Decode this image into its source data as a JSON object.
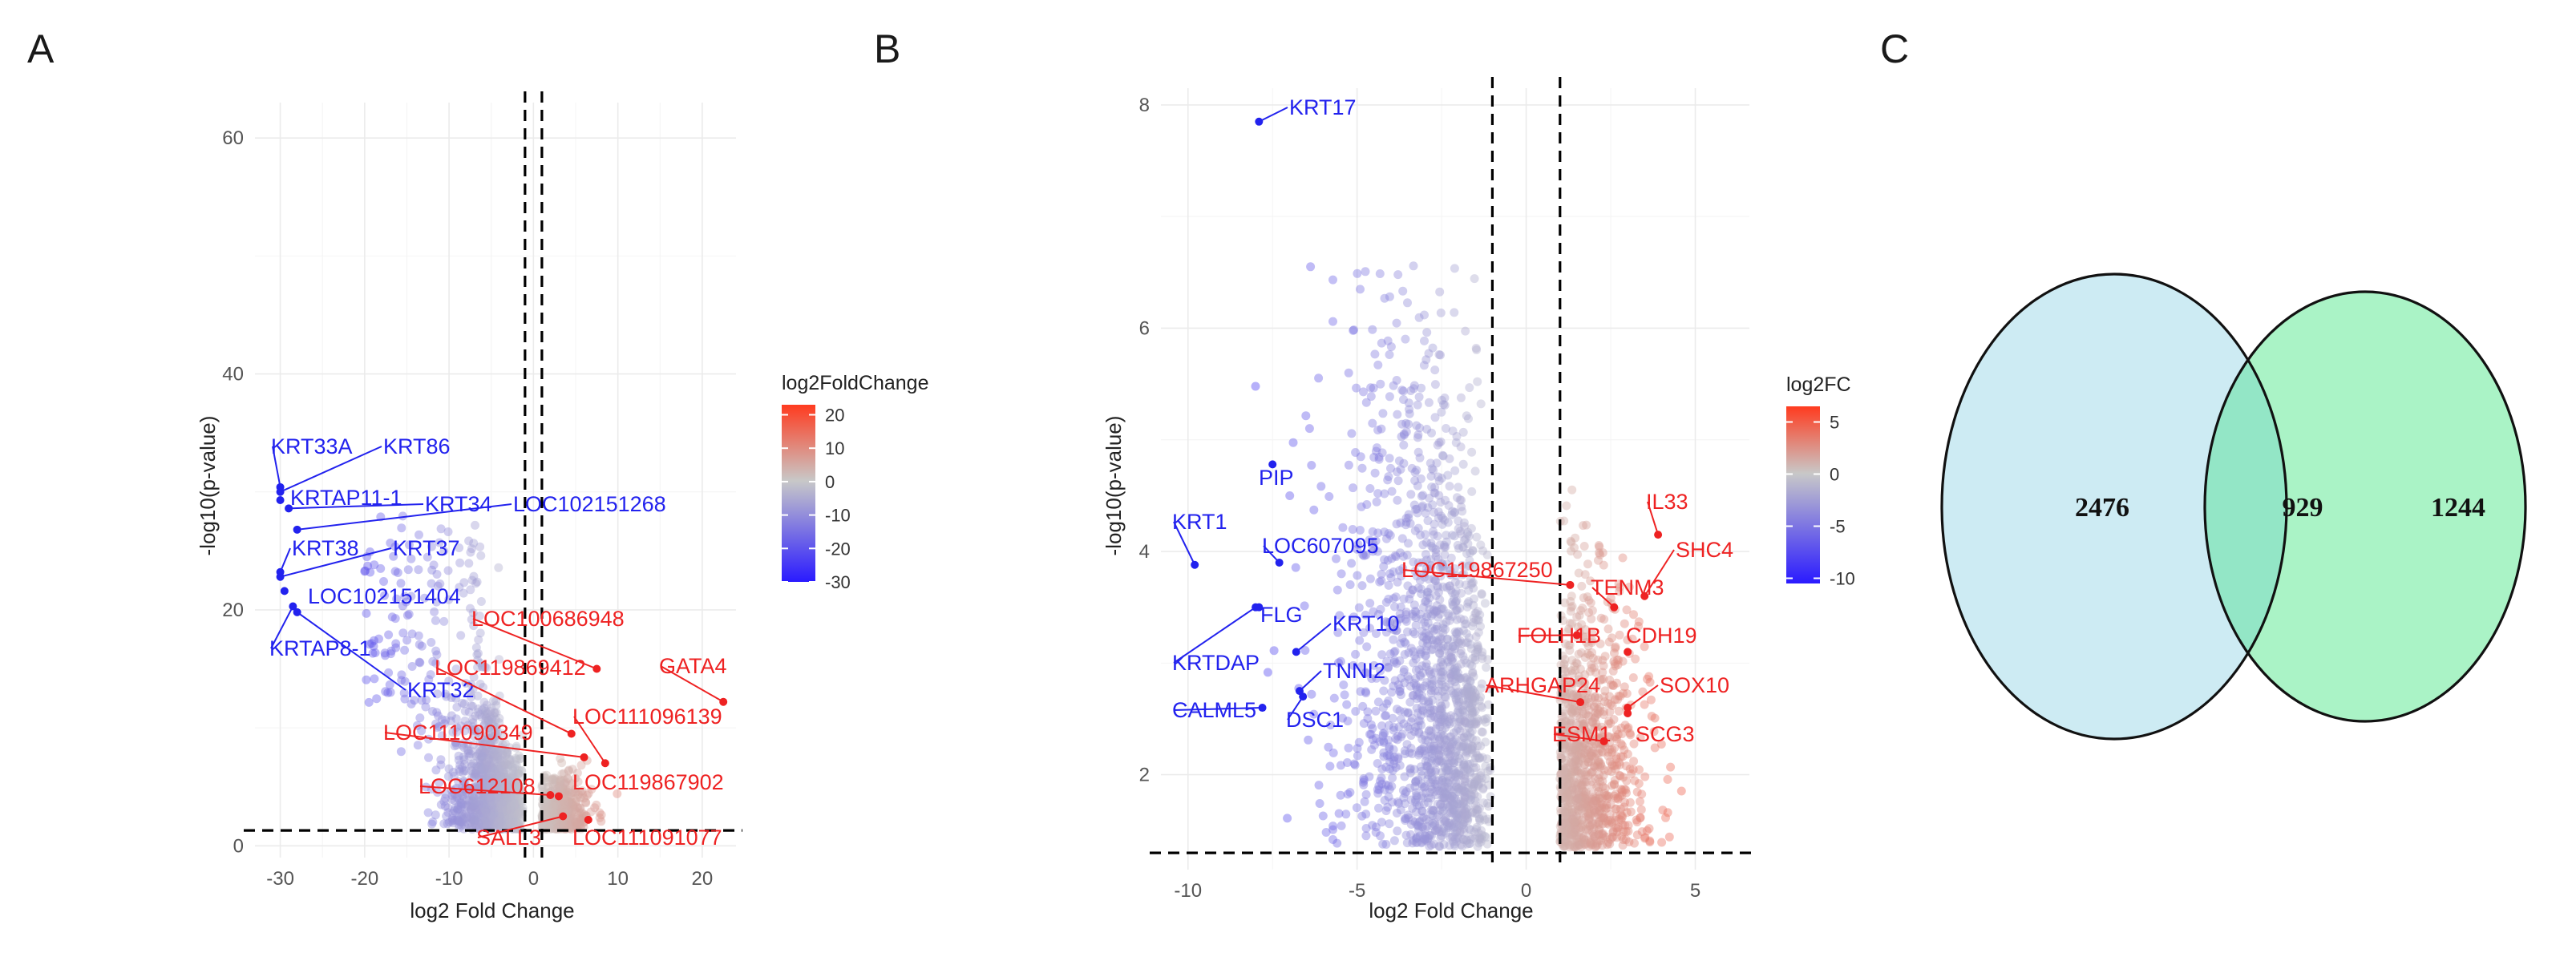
{
  "panels": [
    {
      "letter": "A"
    },
    {
      "letter": "B"
    },
    {
      "letter": "C"
    }
  ],
  "chart_data": [
    {
      "type": "scatter",
      "xlabel": "log2 Fold Change",
      "ylabel": "-log10(p-value)",
      "xlim": [
        -33,
        24
      ],
      "ylim": [
        -1,
        63
      ],
      "xticks": [
        -30,
        -20,
        -10,
        0,
        10,
        20
      ],
      "yticks": [
        0,
        20,
        40,
        60
      ],
      "grid": true,
      "thresholds": {
        "x": [
          -1,
          1
        ],
        "y": 1.3
      },
      "color_legend": {
        "title": "log2FoldChange",
        "ticks": [
          20,
          10,
          0,
          -10,
          -20,
          -30
        ],
        "range": [
          -30,
          23
        ],
        "low_color": "#2a1aff",
        "mid_color": "#c8c8c8",
        "high_color": "#ff3b1f"
      },
      "labeled_points": [
        {
          "gene": "KRT33A",
          "x": -30,
          "y": 30.4,
          "color": "#2222ee"
        },
        {
          "gene": "KRT86",
          "x": -30,
          "y": 30.0,
          "color": "#2222ee"
        },
        {
          "gene": "KRTAP11-1",
          "x": -30,
          "y": 29.3,
          "color": "#2222ee"
        },
        {
          "gene": "KRT34",
          "x": -29,
          "y": 28.6,
          "color": "#2222ee"
        },
        {
          "gene": "LOC102151268",
          "x": -28,
          "y": 26.8,
          "color": "#2222ee"
        },
        {
          "gene": "KRT38",
          "x": -30,
          "y": 23.2,
          "color": "#2222ee"
        },
        {
          "gene": "KRT37",
          "x": -30,
          "y": 22.8,
          "color": "#2222ee"
        },
        {
          "gene": "LOC102151404",
          "x": -29.5,
          "y": 21.6,
          "color": "#2222ee"
        },
        {
          "gene": "KRTAP8-1",
          "x": -28.5,
          "y": 20.3,
          "color": "#2222ee"
        },
        {
          "gene": "KRT32",
          "x": -28,
          "y": 19.8,
          "color": "#2222ee"
        },
        {
          "gene": "LOC100686948",
          "x": 7.5,
          "y": 15.0,
          "color": "#ee2222"
        },
        {
          "gene": "GATA4",
          "x": 22.5,
          "y": 12.2,
          "color": "#ee2222"
        },
        {
          "gene": "LOC119869412",
          "x": 4.5,
          "y": 9.5,
          "color": "#ee2222"
        },
        {
          "gene": "LOC111096139",
          "x": 8.5,
          "y": 7.0,
          "color": "#ee2222"
        },
        {
          "gene": "LOC111090349",
          "x": 6.0,
          "y": 7.5,
          "color": "#ee2222"
        },
        {
          "gene": "LOC119867902",
          "x": 3.0,
          "y": 4.2,
          "color": "#ee2222"
        },
        {
          "gene": "LOC612108",
          "x": 2.0,
          "y": 4.3,
          "color": "#ee2222"
        },
        {
          "gene": "SALL3",
          "x": 3.5,
          "y": 2.5,
          "color": "#ee2222"
        },
        {
          "gene": "LOC111091077",
          "x": 6.5,
          "y": 2.2,
          "color": "#ee2222"
        }
      ]
    },
    {
      "type": "scatter",
      "xlabel": "log2 Fold Change",
      "ylabel": "-log10(p-value)",
      "xlim": [
        -10.8,
        6.6
      ],
      "ylim": [
        1.15,
        8.15
      ],
      "xticks": [
        -10,
        -5,
        0,
        5
      ],
      "yticks": [
        2,
        4,
        6,
        8
      ],
      "grid": true,
      "thresholds": {
        "x": [
          -1,
          1
        ],
        "y": 1.3
      },
      "color_legend": {
        "title": "log2FC",
        "ticks": [
          5,
          0,
          -5,
          -10
        ],
        "range": [
          -10.5,
          6.5
        ],
        "low_color": "#2a1aff",
        "mid_color": "#c8c8c8",
        "high_color": "#ff3b1f"
      },
      "labeled_points": [
        {
          "gene": "KRT17",
          "x": -7.9,
          "y": 7.85,
          "color": "#2222ee"
        },
        {
          "gene": "PIP",
          "x": -7.5,
          "y": 4.78,
          "color": "#2222ee"
        },
        {
          "gene": "KRT1",
          "x": -9.8,
          "y": 3.88,
          "color": "#2222ee"
        },
        {
          "gene": "LOC607095",
          "x": -7.3,
          "y": 3.9,
          "color": "#2222ee"
        },
        {
          "gene": "FLG",
          "x": -7.9,
          "y": 3.5,
          "color": "#2222ee"
        },
        {
          "gene": "KRT10",
          "x": -6.8,
          "y": 3.1,
          "color": "#2222ee"
        },
        {
          "gene": "KRTDAP",
          "x": -8.0,
          "y": 3.5,
          "color": "#2222ee"
        },
        {
          "gene": "TNNI2",
          "x": -6.7,
          "y": 2.75,
          "color": "#2222ee"
        },
        {
          "gene": "CALML5",
          "x": -7.8,
          "y": 2.6,
          "color": "#2222ee"
        },
        {
          "gene": "DSC1",
          "x": -6.6,
          "y": 2.7,
          "color": "#2222ee"
        },
        {
          "gene": "IL33",
          "x": 3.9,
          "y": 4.15,
          "color": "#ee2222"
        },
        {
          "gene": "SHC4",
          "x": 3.5,
          "y": 3.6,
          "color": "#ee2222"
        },
        {
          "gene": "LOC119867250",
          "x": 1.3,
          "y": 3.7,
          "color": "#ee2222"
        },
        {
          "gene": "TENM3",
          "x": 2.6,
          "y": 3.5,
          "color": "#ee2222"
        },
        {
          "gene": "FOLH1B",
          "x": 1.5,
          "y": 3.25,
          "color": "#ee2222"
        },
        {
          "gene": "CDH19",
          "x": 3.0,
          "y": 3.1,
          "color": "#ee2222"
        },
        {
          "gene": "ARHGAP24",
          "x": 1.6,
          "y": 2.65,
          "color": "#ee2222"
        },
        {
          "gene": "SOX10",
          "x": 3.0,
          "y": 2.6,
          "color": "#ee2222"
        },
        {
          "gene": "ESM1",
          "x": 2.3,
          "y": 2.3,
          "color": "#ee2222"
        },
        {
          "gene": "SCG3",
          "x": 3.0,
          "y": 2.55,
          "color": "#ee2222"
        }
      ]
    },
    {
      "type": "venn",
      "sets": [
        {
          "color": "#cdebf3",
          "only": 2476
        },
        {
          "color": "#aaf3c6",
          "only": 1244
        }
      ],
      "intersection": 929,
      "intersection_color": "#93e6c6"
    }
  ]
}
